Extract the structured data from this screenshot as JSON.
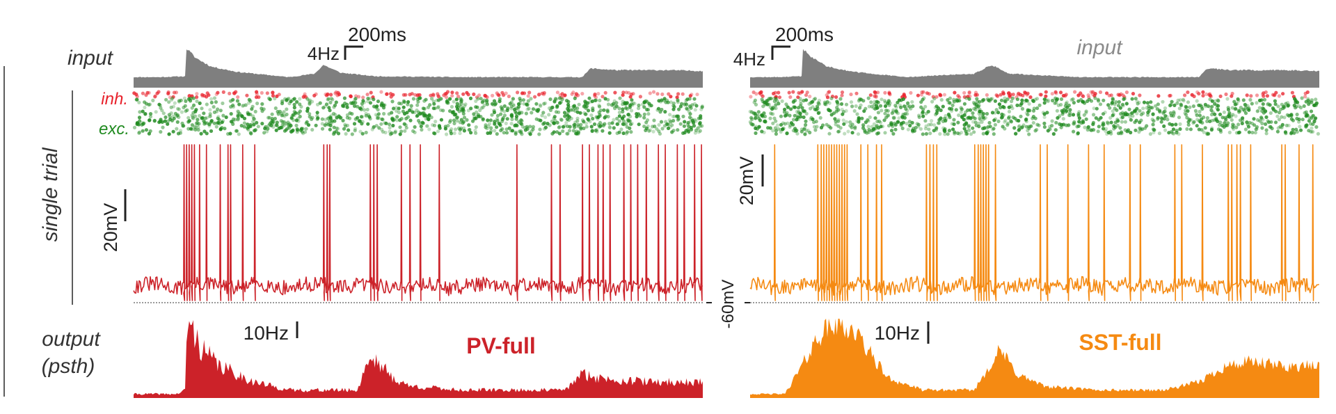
{
  "row_labels": {
    "input": "input",
    "single_trial": "single trial",
    "output_line1": "output",
    "output_line2": "(psth)"
  },
  "raster_labels": {
    "inh": "inh.",
    "exc": "exc."
  },
  "shared_axis_label": "-60mV",
  "colors": {
    "input_fill": "#7f7f7f",
    "pv": "#cc2229",
    "sst": "#f58a12",
    "inh_dot": "#e8212b",
    "exc_dot": "#1f8a1f",
    "label_gray": "#333333",
    "input_label_gray": "#8a8a8a"
  },
  "panels": [
    {
      "id": "pv",
      "title": "PV-full",
      "input_label": "",
      "input_scale": {
        "rate_label": "4Hz",
        "time_label": "200ms"
      },
      "vm_scale_label": "20mV",
      "psth_scale_label": "10Hz"
    },
    {
      "id": "sst",
      "title": "SST-full",
      "input_label": "input",
      "input_scale": {
        "rate_label": "4Hz",
        "time_label": "200ms"
      },
      "vm_scale_label": "20mV",
      "psth_scale_label": "10Hz"
    }
  ],
  "chart_data": [
    {
      "panel": "PV-full",
      "type": "area",
      "name": "input",
      "x_range_ms": [
        0,
        3300
      ],
      "x": [
        0,
        150,
        300,
        305,
        360,
        450,
        600,
        900,
        1050,
        1100,
        1200,
        1400,
        1900,
        2200,
        2600,
        2650,
        2800,
        3100,
        3300
      ],
      "values": [
        1.2,
        1.2,
        1.3,
        4.5,
        3.4,
        2.4,
        1.8,
        1.2,
        1.6,
        2.6,
        1.7,
        1.3,
        1.2,
        1.2,
        1.2,
        2.2,
        2.0,
        2.0,
        1.9
      ]
    },
    {
      "panel": "PV-full",
      "type": "scatter",
      "name": "raster",
      "series": [
        {
          "name": "inh.",
          "n_units": 10
        },
        {
          "name": "exc.",
          "n_units": 80
        }
      ]
    },
    {
      "panel": "PV-full",
      "type": "line",
      "name": "membrane potential",
      "baseline_mV": -60,
      "x_range_ms": [
        0,
        3300
      ],
      "spike_times_ms": [
        290,
        305,
        320,
        335,
        350,
        380,
        420,
        500,
        545,
        560,
        630,
        700,
        1100,
        1120,
        1135,
        1370,
        1390,
        1410,
        1550,
        1600,
        1660,
        1770,
        2220,
        2420,
        2470,
        2600,
        2640,
        2690,
        2720,
        2760,
        2840,
        2880,
        2920,
        2970,
        3040,
        3080,
        3150,
        3190,
        3250,
        3290
      ]
    },
    {
      "panel": "PV-full",
      "type": "area",
      "name": "output (psth)",
      "x_range_ms": [
        0,
        3300
      ],
      "x": [
        0,
        250,
        300,
        310,
        340,
        400,
        500,
        600,
        700,
        900,
        1300,
        1350,
        1400,
        1500,
        1600,
        1900,
        2500,
        2600,
        2700,
        3000,
        3300
      ],
      "values": [
        1,
        1,
        2,
        20,
        17,
        12,
        8,
        6,
        4,
        2,
        2,
        9,
        10,
        5,
        3,
        2,
        2,
        6,
        5,
        4,
        4
      ]
    },
    {
      "panel": "SST-full",
      "type": "area",
      "name": "input",
      "x_range_ms": [
        0,
        3300
      ],
      "x": [
        0,
        150,
        300,
        305,
        360,
        450,
        600,
        900,
        1300,
        1400,
        1500,
        1900,
        2200,
        2600,
        2650,
        2800,
        3100,
        3300
      ],
      "values": [
        1.2,
        1.2,
        1.3,
        4.5,
        3.4,
        2.4,
        1.8,
        1.2,
        1.6,
        2.6,
        1.6,
        1.2,
        1.2,
        1.2,
        2.2,
        2.0,
        2.0,
        1.9
      ]
    },
    {
      "panel": "SST-full",
      "type": "scatter",
      "name": "raster",
      "series": [
        {
          "name": "inh.",
          "n_units": 10
        },
        {
          "name": "exc.",
          "n_units": 80
        }
      ]
    },
    {
      "panel": "SST-full",
      "type": "line",
      "name": "membrane potential",
      "baseline_mV": -60,
      "x_range_ms": [
        0,
        3300
      ],
      "spike_times_ms": [
        140,
        390,
        410,
        425,
        440,
        455,
        470,
        485,
        500,
        515,
        530,
        545,
        560,
        640,
        680,
        730,
        760,
        1020,
        1040,
        1060,
        1080,
        1300,
        1320,
        1335,
        1350,
        1365,
        1380,
        1420,
        1680,
        1720,
        1840,
        1960,
        2050,
        2200,
        2260,
        2460,
        2500,
        2620,
        2770,
        2790,
        2820,
        2840,
        2900,
        3080,
        3100,
        3180,
        3260
      ]
    },
    {
      "panel": "SST-full",
      "type": "area",
      "name": "output (psth)",
      "x_range_ms": [
        0,
        3300
      ],
      "x": [
        0,
        200,
        300,
        400,
        500,
        600,
        700,
        800,
        1000,
        1300,
        1400,
        1450,
        1550,
        1700,
        2000,
        2400,
        2600,
        2750,
        2900,
        3100,
        3300
      ],
      "values": [
        1,
        1,
        8,
        16,
        19,
        17,
        11,
        5,
        2,
        2,
        9,
        12,
        6,
        3,
        2,
        2,
        4,
        8,
        9,
        8,
        8
      ]
    }
  ]
}
